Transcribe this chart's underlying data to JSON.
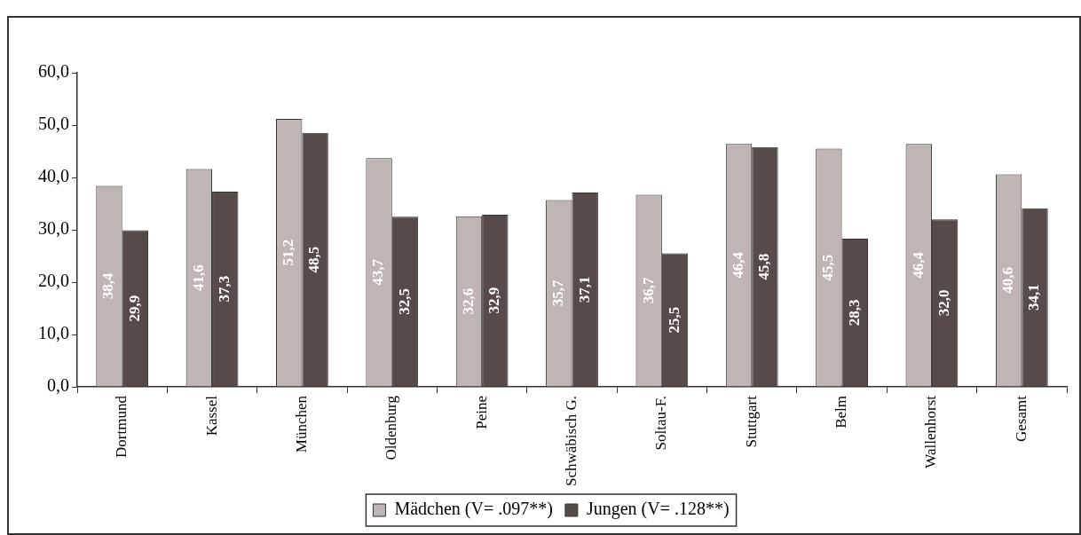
{
  "chart_data": {
    "type": "bar",
    "categories": [
      "Dortmund",
      "Kassel",
      "München",
      "Oldenburg",
      "Peine",
      "Schwäbisch G.",
      "Soltau-F.",
      "Stuttgart",
      "Belm",
      "Wallenhorst",
      "Gesamt"
    ],
    "series": [
      {
        "name": "Mädchen (V= .097**)",
        "color": "#c0b5b5",
        "values": [
          38.4,
          41.6,
          51.2,
          43.7,
          32.6,
          35.7,
          36.7,
          46.4,
          45.5,
          46.4,
          40.6
        ],
        "value_labels": [
          "38,4",
          "41,6",
          "51,2",
          "43,7",
          "32,6",
          "35,7",
          "36,7",
          "46,4",
          "45,5",
          "46,4",
          "40,6"
        ]
      },
      {
        "name": "Jungen (V= .128**)",
        "color": "#574a4a",
        "values": [
          29.9,
          37.3,
          48.5,
          32.5,
          32.9,
          37.1,
          25.5,
          45.8,
          28.3,
          32.0,
          34.1
        ],
        "value_labels": [
          "29,9",
          "37,3",
          "48,5",
          "32,5",
          "32,9",
          "37,1",
          "25,5",
          "45,8",
          "28,3",
          "32,0",
          "34,1"
        ]
      }
    ],
    "ylim": [
      0,
      60
    ],
    "yticks": [
      {
        "value": 0,
        "label": "0,0"
      },
      {
        "value": 10,
        "label": "10,0"
      },
      {
        "value": 20,
        "label": "20,0"
      },
      {
        "value": 30,
        "label": "30,0"
      },
      {
        "value": 40,
        "label": "40,0"
      },
      {
        "value": 50,
        "label": "50,0"
      },
      {
        "value": 60,
        "label": "60,0"
      }
    ],
    "grid": false,
    "legend": "bottom"
  }
}
